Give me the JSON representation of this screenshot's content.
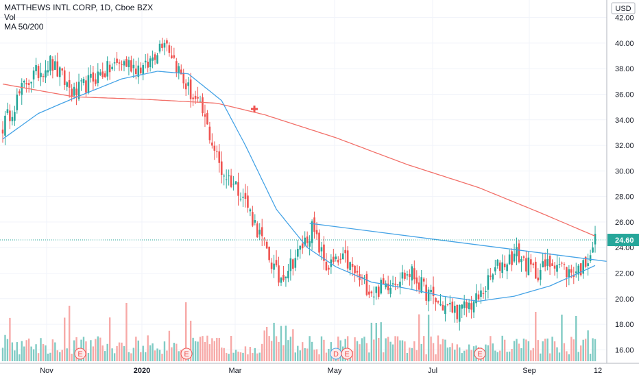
{
  "legend": {
    "title": "MATTHEWS INTL CORP, 1D, Cboe BZX",
    "volume": "Vol",
    "ma": "MA 50/200"
  },
  "currency": "USD",
  "last_price_label": "24.60",
  "colors": {
    "up": "#26a69a",
    "down": "#ef5350",
    "vol_up": "#80cbc4",
    "vol_down": "#f7a9a7",
    "ma50": "#45a3e6",
    "ma200": "#f27069",
    "trendline": "#45a3e6",
    "cross_marker": "#ef5350",
    "last_price_bg": "#26a69a",
    "grid": "#f0f3fa",
    "earnings": "#ef5350"
  },
  "chart_data": {
    "type": "candlestick",
    "title": "MATTHEWS INTL CORP, 1D, Cboe BZX",
    "x_axis_labels": [
      "Nov",
      "2020",
      "Mar",
      "May",
      "Jul",
      "Sep",
      "12"
    ],
    "y_ticks": [
      "16.00",
      "18.00",
      "20.00",
      "22.00",
      "24.00",
      "26.00",
      "28.00",
      "30.00",
      "32.00",
      "34.00",
      "36.00",
      "38.00",
      "40.00",
      "42.00"
    ],
    "ylim": [
      15.0,
      43.0
    ],
    "last_price": 24.6,
    "earnings_markers": [
      "E",
      "E",
      "D",
      "E",
      "E"
    ],
    "ohlc_keypoints": [
      {
        "i": 0,
        "close": 33.5
      },
      {
        "i": 10,
        "close": 37.0
      },
      {
        "i": 20,
        "close": 38.5
      },
      {
        "i": 30,
        "close": 36.0
      },
      {
        "i": 40,
        "close": 37.5
      },
      {
        "i": 50,
        "close": 38.5
      },
      {
        "i": 60,
        "close": 38.0
      },
      {
        "i": 68,
        "close": 40.5
      },
      {
        "i": 76,
        "close": 37.0
      },
      {
        "i": 84,
        "close": 34.5
      },
      {
        "i": 92,
        "close": 30.0
      },
      {
        "i": 100,
        "close": 28.5
      },
      {
        "i": 108,
        "close": 25.0
      },
      {
        "i": 116,
        "close": 21.5
      },
      {
        "i": 124,
        "close": 23.5
      },
      {
        "i": 130,
        "close": 25.5
      },
      {
        "i": 136,
        "close": 22.5
      },
      {
        "i": 144,
        "close": 23.0
      },
      {
        "i": 150,
        "close": 21.5
      },
      {
        "i": 156,
        "close": 20.5
      },
      {
        "i": 164,
        "close": 21.5
      },
      {
        "i": 172,
        "close": 22.0
      },
      {
        "i": 178,
        "close": 20.5
      },
      {
        "i": 184,
        "close": 19.5
      },
      {
        "i": 192,
        "close": 19.0
      },
      {
        "i": 200,
        "close": 20.0
      },
      {
        "i": 208,
        "close": 22.5
      },
      {
        "i": 216,
        "close": 23.5
      },
      {
        "i": 224,
        "close": 22.0
      },
      {
        "i": 232,
        "close": 23.0
      },
      {
        "i": 238,
        "close": 22.0
      },
      {
        "i": 244,
        "close": 22.5
      },
      {
        "i": 249,
        "close": 24.6
      }
    ],
    "ma50_keypoints": [
      {
        "i": 0,
        "v": 32.5
      },
      {
        "i": 15,
        "v": 34.5
      },
      {
        "i": 30,
        "v": 35.7
      },
      {
        "i": 50,
        "v": 37.2
      },
      {
        "i": 65,
        "v": 37.8
      },
      {
        "i": 78,
        "v": 37.6
      },
      {
        "i": 92,
        "v": 35.5
      },
      {
        "i": 102,
        "v": 32.0
      },
      {
        "i": 115,
        "v": 27.0
      },
      {
        "i": 128,
        "v": 24.0
      },
      {
        "i": 140,
        "v": 22.5
      },
      {
        "i": 155,
        "v": 21.3
      },
      {
        "i": 170,
        "v": 20.8
      },
      {
        "i": 185,
        "v": 20.2
      },
      {
        "i": 200,
        "v": 19.8
      },
      {
        "i": 215,
        "v": 20.2
      },
      {
        "i": 230,
        "v": 21.0
      },
      {
        "i": 242,
        "v": 22.0
      },
      {
        "i": 249,
        "v": 22.6
      }
    ],
    "ma200_keypoints": [
      {
        "i": 0,
        "v": 36.8
      },
      {
        "i": 30,
        "v": 35.8
      },
      {
        "i": 60,
        "v": 35.6
      },
      {
        "i": 90,
        "v": 35.3
      },
      {
        "i": 110,
        "v": 34.4
      },
      {
        "i": 140,
        "v": 32.6
      },
      {
        "i": 170,
        "v": 30.5
      },
      {
        "i": 200,
        "v": 28.7
      },
      {
        "i": 225,
        "v": 26.8
      },
      {
        "i": 249,
        "v": 24.9
      }
    ],
    "trendline": {
      "from": {
        "i": 129,
        "v": 25.9
      },
      "to": {
        "i": 259,
        "v": 22.8
      }
    }
  }
}
